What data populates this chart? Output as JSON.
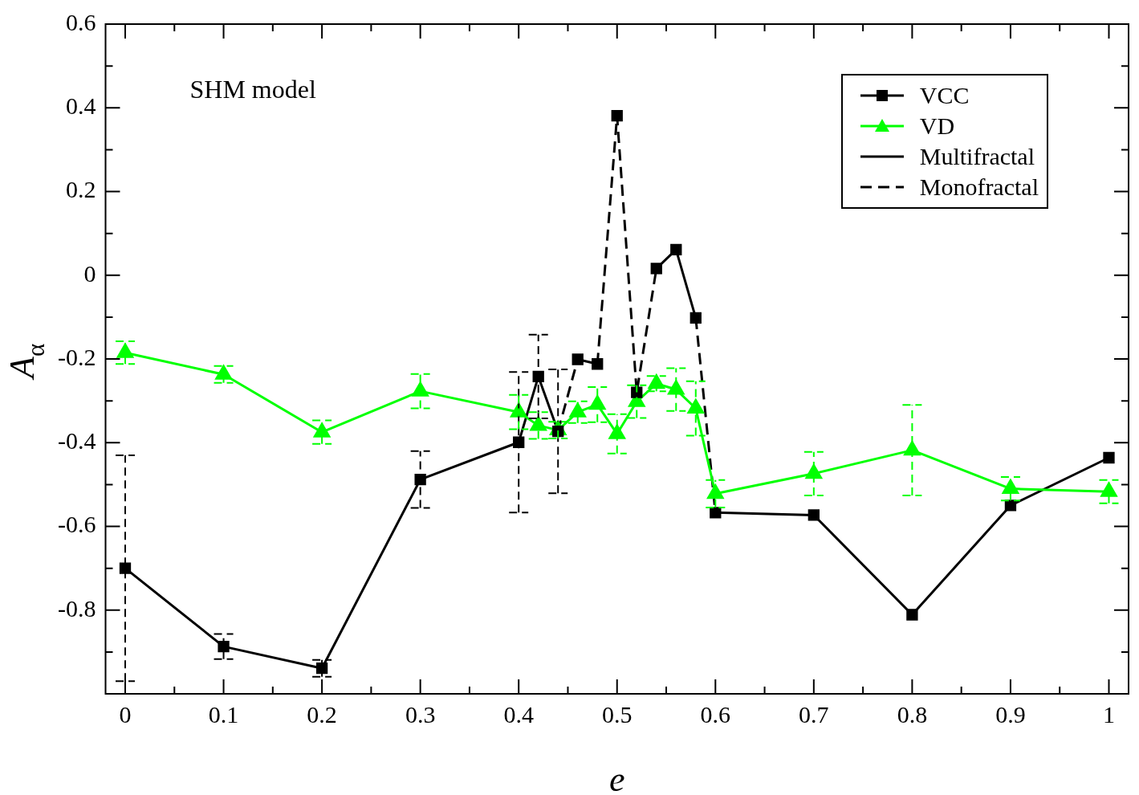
{
  "chart_data": {
    "type": "line",
    "xlabel": "e",
    "ylabel": "A$_{α}$",
    "annotations": [
      "SHM model"
    ],
    "xlim": [
      -0.02,
      1.02
    ],
    "ylim": [
      -1,
      0.6
    ],
    "xticks": [
      0,
      {
        "value": 0.05,
        "label": null
      },
      0.1,
      {
        "value": 0.15,
        "label": null
      },
      0.2,
      {
        "value": 0.25,
        "label": null
      },
      0.3,
      {
        "value": 0.35,
        "label": null
      },
      0.4,
      {
        "value": 0.45,
        "label": null
      },
      0.5,
      {
        "value": 0.55,
        "label": null
      },
      0.6,
      {
        "value": 0.65,
        "label": null
      },
      0.7,
      {
        "value": 0.75,
        "label": null
      },
      0.8,
      {
        "value": 0.85,
        "label": null
      },
      0.9,
      {
        "value": 0.95,
        "label": null
      },
      1
    ],
    "yticks": [
      {
        "value": -1,
        "label": null
      },
      {
        "value": -0.9,
        "label": null
      },
      -0.8,
      {
        "value": -0.7,
        "label": null
      },
      -0.6,
      {
        "value": -0.5,
        "label": null
      },
      -0.4,
      {
        "value": -0.3,
        "label": null
      },
      -0.2,
      {
        "value": -0.1,
        "label": null
      },
      0,
      {
        "value": 0.1,
        "label": null
      },
      0.2,
      {
        "value": 0.3,
        "label": null
      },
      0.4,
      {
        "value": 0.5,
        "label": null
      },
      0.6
    ],
    "grid": false,
    "legend": "top right",
    "series": [
      {
        "name": "VCC",
        "type": "scatter",
        "marker": "square",
        "color": "#000000",
        "x": [
          0,
          0.1,
          0.2,
          0.3,
          0.4,
          0.42,
          0.44,
          0.46,
          0.48,
          0.5,
          0.52,
          0.54,
          0.56,
          0.58,
          0.6,
          0.7,
          0.8,
          0.9,
          1
        ],
        "values": [
          -0.7,
          -0.887,
          -0.939,
          -0.488,
          -0.399,
          -0.242,
          -0.373,
          -0.201,
          -0.212,
          0.381,
          -0.28,
          0.016,
          0.061,
          -0.102,
          -0.567,
          -0.573,
          -0.811,
          -0.55,
          -0.436
        ],
        "errors": [
          0.27,
          0.03,
          0.02,
          0.068,
          0.168,
          0.1,
          0.148,
          null,
          null,
          null,
          null,
          null,
          null,
          null,
          null,
          null,
          null,
          null,
          null
        ]
      },
      {
        "name": "VD",
        "marker": "triangle",
        "line_style": "solid",
        "color": "#00ff00",
        "x": [
          0,
          0.1,
          0.2,
          0.3,
          0.4,
          0.42,
          0.44,
          0.46,
          0.48,
          0.5,
          0.52,
          0.54,
          0.56,
          0.58,
          0.6,
          0.7,
          0.8,
          0.9,
          1
        ],
        "values": [
          -0.185,
          -0.237,
          -0.375,
          -0.277,
          -0.327,
          -0.359,
          -0.37,
          -0.327,
          -0.309,
          -0.379,
          -0.302,
          -0.259,
          -0.273,
          -0.318,
          -0.522,
          -0.474,
          -0.418,
          -0.51,
          -0.517
        ],
        "errors": [
          0.027,
          0.02,
          0.028,
          0.041,
          0.041,
          0.032,
          0.02,
          0.026,
          0.042,
          0.047,
          0.039,
          0.018,
          0.051,
          0.065,
          0.033,
          0.052,
          0.108,
          0.028,
          0.028
        ]
      },
      {
        "name": "Multifractal",
        "marker": "none",
        "line_style": "solid",
        "color": "#000000",
        "x": [
          0,
          0.1,
          0.2,
          0.3,
          0.4,
          0.42,
          0.44
        ],
        "values": [
          -0.7,
          -0.887,
          -0.939,
          -0.488,
          -0.399,
          -0.242,
          -0.373
        ]
      },
      {
        "name": "Monofractal",
        "marker": "none",
        "line_style": "dashed",
        "color": "#000000",
        "x": [
          0.44,
          0.46
        ],
        "values": [
          -0.373,
          -0.201
        ]
      },
      {
        "marker": "none",
        "line_style": "solid",
        "color": "#000000",
        "x": [
          0.46,
          0.48
        ],
        "values": [
          -0.201,
          -0.212
        ]
      },
      {
        "marker": "none",
        "line_style": "dashed",
        "color": "#000000",
        "x": [
          0.48,
          0.5,
          0.52,
          0.54
        ],
        "values": [
          -0.212,
          0.381,
          -0.28,
          0.016
        ]
      },
      {
        "marker": "none",
        "line_style": "solid",
        "color": "#000000",
        "x": [
          0.54,
          0.56,
          0.58
        ],
        "values": [
          0.016,
          0.061,
          -0.102
        ]
      },
      {
        "marker": "none",
        "line_style": "dashed",
        "color": "#000000",
        "x": [
          0.58,
          0.6
        ],
        "values": [
          -0.102,
          -0.567
        ]
      },
      {
        "marker": "none",
        "line_style": "solid",
        "color": "#000000",
        "x": [
          0.6,
          0.7,
          0.8,
          0.9,
          1
        ],
        "values": [
          -0.567,
          -0.573,
          -0.811,
          -0.55,
          -0.436
        ]
      }
    ]
  }
}
